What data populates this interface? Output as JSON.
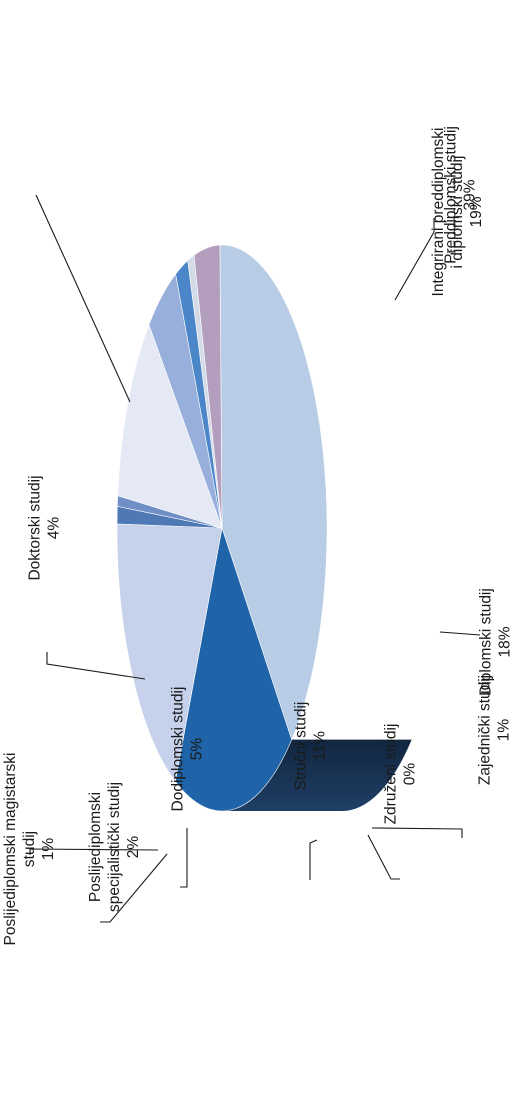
{
  "chart_data": {
    "type": "pie",
    "title": "",
    "slices": [
      {
        "name": "Preddiplomski studij",
        "lines": [
          "Preddiplomski studij"
        ],
        "value": 39,
        "value_label": "39%",
        "color": "#b8cce6"
      },
      {
        "name": "Integrirani preddiplomski i diplomski studij",
        "lines": [
          "Integrirani preddiplomski",
          "i diplomski studij"
        ],
        "value": 19,
        "value_label": "19%",
        "color": "#1f63a8"
      },
      {
        "name": "Diplomski studij",
        "lines": [
          "Diplomski studij"
        ],
        "value": 18,
        "value_label": "18%",
        "color": "#c6d2ec"
      },
      {
        "name": "Zajednički studij",
        "lines": [
          "Zajednički studij"
        ],
        "value": 1,
        "value_label": "1%",
        "color": "#4f79b4"
      },
      {
        "name": "Združeni studij",
        "lines": [
          "Združeni studij"
        ],
        "value": 0,
        "value_label": "0%",
        "color": "#6f8fc6"
      },
      {
        "name": "Stručni studij",
        "lines": [
          "Stručni studij"
        ],
        "value": 11,
        "value_label": "11%",
        "color": "#e4e9f5"
      },
      {
        "name": "Dodiplomski studij",
        "lines": [
          "Dodiplomski studij"
        ],
        "value": 5,
        "value_label": "5%",
        "color": "#98aedb"
      },
      {
        "name": "Poslijediplomski specijalistički studij",
        "lines": [
          "Poslijediplomski",
          "specijalistički studij"
        ],
        "value": 2,
        "value_label": "2%",
        "color": "#4a86c8"
      },
      {
        "name": "Poslijediplomski magistarski studij",
        "lines": [
          "Poslijediplomski magistarski",
          "studij"
        ],
        "value": 1,
        "value_label": "1%",
        "color": "#d3dbe8"
      },
      {
        "name": "Doktorski studij",
        "lines": [
          "Doktorski studij"
        ],
        "value": 4,
        "value_label": "4%",
        "color": "#b39ebe"
      }
    ]
  }
}
